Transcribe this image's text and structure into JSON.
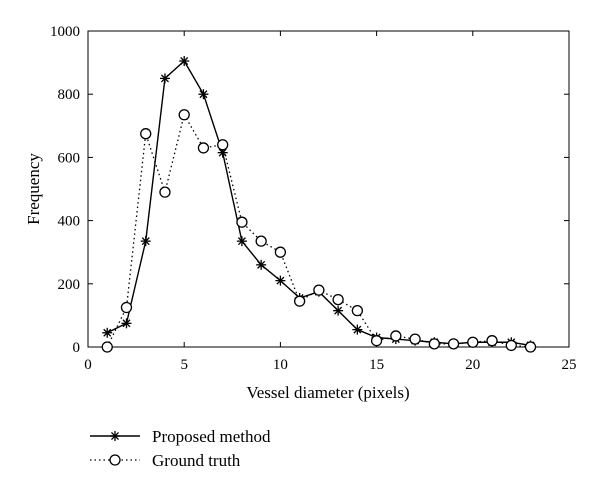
{
  "chart_data": {
    "type": "line",
    "xlabel": "Vessel diameter (pixels)",
    "ylabel": "Frequency",
    "xlim": [
      0,
      25
    ],
    "ylim": [
      0,
      1000
    ],
    "xticks": [
      0,
      5,
      10,
      15,
      20,
      25
    ],
    "yticks": [
      0,
      200,
      400,
      600,
      800,
      1000
    ],
    "grid": false,
    "legend_position": "below-left",
    "series": [
      {
        "name": "Proposed method",
        "style": "solid",
        "marker": "asterisk",
        "color": "#000000",
        "x": [
          1,
          2,
          3,
          4,
          5,
          6,
          7,
          8,
          9,
          10,
          11,
          12,
          13,
          14,
          15,
          16,
          17,
          18,
          19,
          20,
          21,
          22,
          23
        ],
        "y": [
          45,
          75,
          335,
          850,
          905,
          800,
          615,
          335,
          260,
          210,
          155,
          175,
          115,
          55,
          30,
          25,
          20,
          15,
          10,
          15,
          15,
          15,
          5
        ]
      },
      {
        "name": "Ground truth",
        "style": "dotted",
        "marker": "circle",
        "color": "#000000",
        "x": [
          1,
          2,
          3,
          4,
          5,
          6,
          7,
          8,
          9,
          10,
          11,
          12,
          13,
          14,
          15,
          16,
          17,
          18,
          19,
          20,
          21,
          22,
          23
        ],
        "y": [
          0,
          125,
          675,
          490,
          735,
          630,
          640,
          395,
          335,
          300,
          145,
          180,
          150,
          115,
          20,
          35,
          25,
          10,
          10,
          15,
          20,
          5,
          0
        ]
      }
    ]
  }
}
